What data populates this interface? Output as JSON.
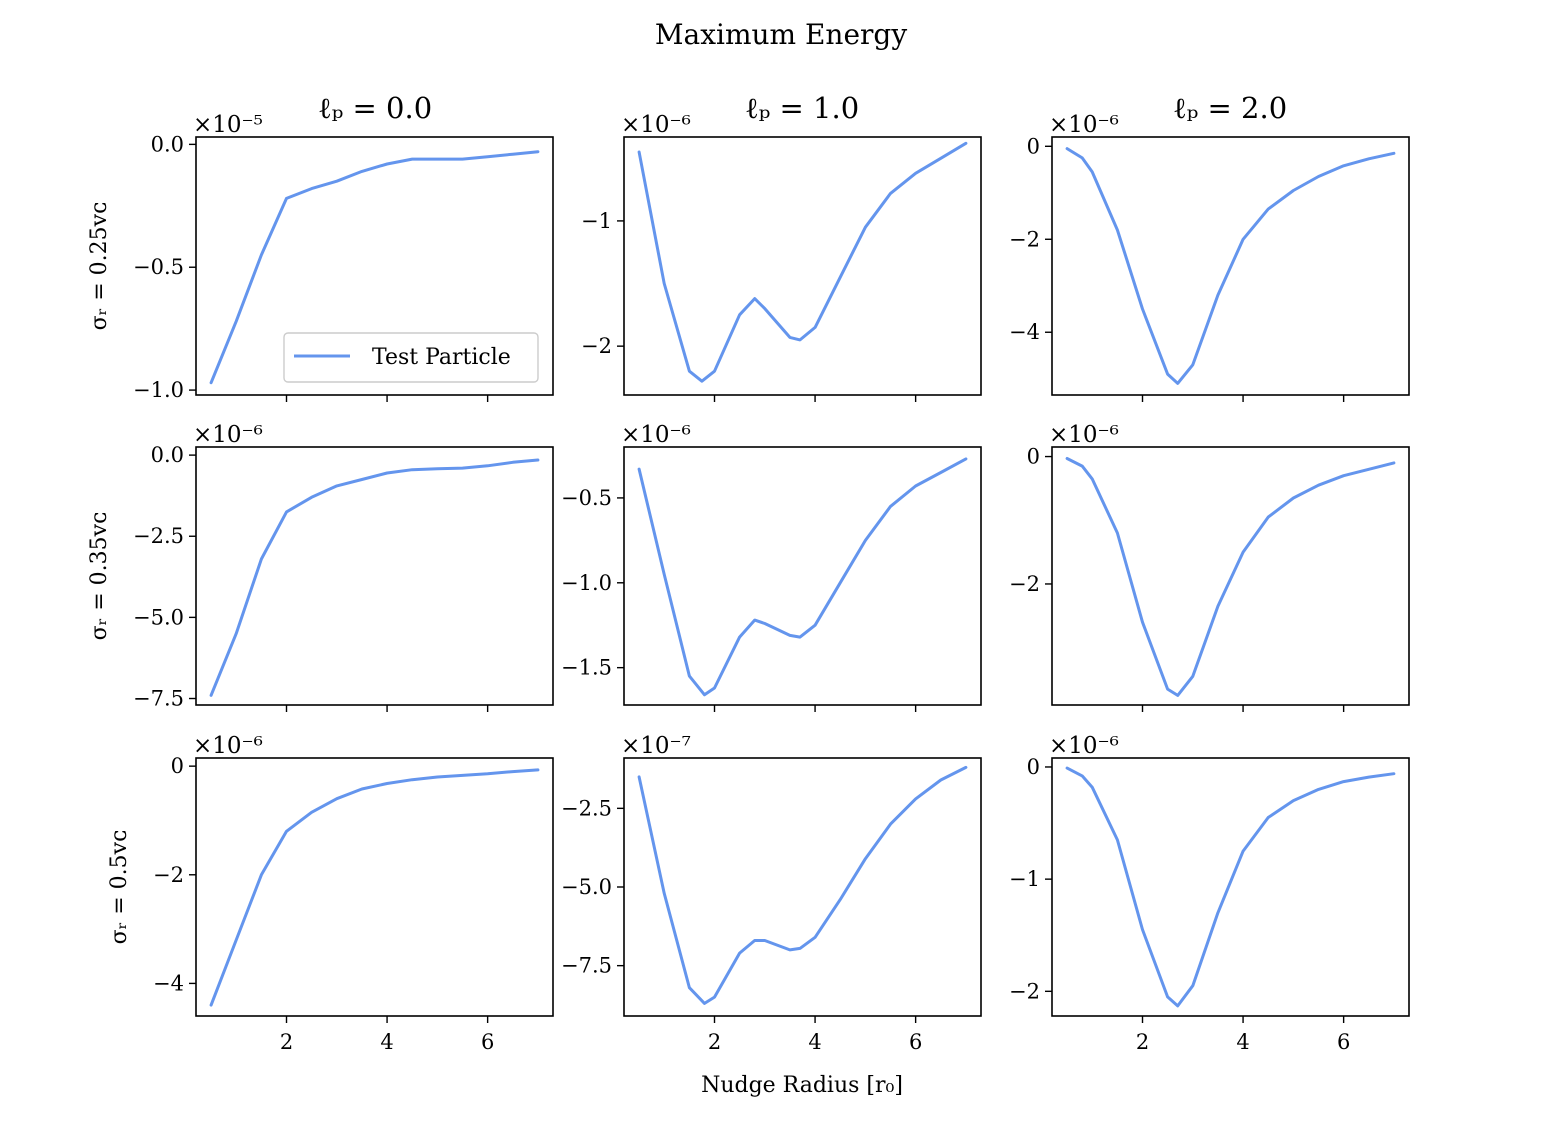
{
  "figure": {
    "title": "Maximum Energy",
    "xlabel": "Nudge Radius [r₀]",
    "column_titles": [
      "ℓₚ = 0.0",
      "ℓₚ = 1.0",
      "ℓₚ = 2.0"
    ],
    "row_labels": [
      "σᵣ = 0.25vᴄ",
      "σᵣ = 0.35vᴄ",
      "σᵣ = 0.5vᴄ"
    ],
    "legend": {
      "label": "Test Particle",
      "placement": "lower-right",
      "panel": 0
    }
  },
  "chart_data": [
    {
      "type": "line",
      "row": 0,
      "col": 0,
      "offset_text": "×10⁻⁵",
      "x": [
        0.5,
        1.0,
        1.5,
        2.0,
        2.5,
        3.0,
        3.5,
        4.0,
        4.5,
        5.0,
        5.5,
        6.0,
        6.5,
        7.0
      ],
      "series": [
        {
          "name": "Test Particle",
          "color": "#6495ed",
          "values": [
            -0.97,
            -0.72,
            -0.45,
            -0.22,
            -0.18,
            -0.15,
            -0.11,
            -0.08,
            -0.06,
            -0.06,
            -0.06,
            -0.05,
            -0.04,
            -0.03
          ]
        }
      ],
      "ylim": [
        -1.02,
        0.03
      ],
      "yticks": [
        0.0,
        -0.5,
        -1.0
      ],
      "ytick_labels": [
        "0.0",
        "−0.5",
        "−1.0"
      ],
      "xlim": [
        0.2,
        7.3
      ],
      "xticks": [
        2,
        4,
        6
      ],
      "xtick_labels": []
    },
    {
      "type": "line",
      "row": 0,
      "col": 1,
      "offset_text": "×10⁻⁶",
      "x": [
        0.5,
        1.0,
        1.5,
        1.75,
        2.0,
        2.5,
        2.8,
        3.0,
        3.5,
        3.7,
        4.0,
        4.5,
        5.0,
        5.5,
        6.0,
        6.5,
        7.0
      ],
      "series": [
        {
          "name": "Test Particle",
          "color": "#6495ed",
          "values": [
            -0.45,
            -1.5,
            -2.2,
            -2.28,
            -2.2,
            -1.75,
            -1.62,
            -1.7,
            -1.93,
            -1.95,
            -1.85,
            -1.45,
            -1.05,
            -0.78,
            -0.62,
            -0.5,
            -0.38
          ]
        }
      ],
      "ylim": [
        -2.39,
        -0.33
      ],
      "yticks": [
        -1,
        -2
      ],
      "ytick_labels": [
        "−1",
        "−2"
      ],
      "xlim": [
        0.2,
        7.3
      ],
      "xticks": [
        2,
        4,
        6
      ],
      "xtick_labels": []
    },
    {
      "type": "line",
      "row": 0,
      "col": 2,
      "offset_text": "×10⁻⁶",
      "x": [
        0.5,
        0.8,
        1.0,
        1.5,
        2.0,
        2.5,
        2.7,
        3.0,
        3.5,
        4.0,
        4.5,
        5.0,
        5.5,
        6.0,
        6.5,
        7.0
      ],
      "series": [
        {
          "name": "Test Particle",
          "color": "#6495ed",
          "values": [
            -0.05,
            -0.25,
            -0.55,
            -1.8,
            -3.5,
            -4.9,
            -5.1,
            -4.7,
            -3.2,
            -2.0,
            -1.35,
            -0.95,
            -0.65,
            -0.42,
            -0.27,
            -0.15
          ]
        }
      ],
      "ylim": [
        -5.35,
        0.2
      ],
      "yticks": [
        0,
        -2,
        -4
      ],
      "ytick_labels": [
        "0",
        "−2",
        "−4"
      ],
      "xlim": [
        0.2,
        7.3
      ],
      "xticks": [
        2,
        4,
        6
      ],
      "xtick_labels": []
    },
    {
      "type": "line",
      "row": 1,
      "col": 0,
      "offset_text": "×10⁻⁶",
      "x": [
        0.5,
        1.0,
        1.5,
        2.0,
        2.5,
        3.0,
        3.5,
        4.0,
        4.5,
        5.0,
        5.5,
        6.0,
        6.5,
        7.0
      ],
      "series": [
        {
          "name": "Test Particle",
          "color": "#6495ed",
          "values": [
            -7.4,
            -5.5,
            -3.2,
            -1.75,
            -1.3,
            -0.95,
            -0.75,
            -0.55,
            -0.45,
            -0.42,
            -0.4,
            -0.33,
            -0.22,
            -0.15
          ]
        }
      ],
      "ylim": [
        -7.7,
        0.25
      ],
      "yticks": [
        0.0,
        -2.5,
        -5.0,
        -7.5
      ],
      "ytick_labels": [
        "0.0",
        "−2.5",
        "−5.0",
        "−7.5"
      ],
      "xlim": [
        0.2,
        7.3
      ],
      "xticks": [
        2,
        4,
        6
      ],
      "xtick_labels": []
    },
    {
      "type": "line",
      "row": 1,
      "col": 1,
      "offset_text": "×10⁻⁶",
      "x": [
        0.5,
        1.0,
        1.5,
        1.8,
        2.0,
        2.5,
        2.8,
        3.0,
        3.5,
        3.7,
        4.0,
        4.5,
        5.0,
        5.5,
        6.0,
        6.5,
        7.0
      ],
      "series": [
        {
          "name": "Test Particle",
          "color": "#6495ed",
          "values": [
            -0.33,
            -0.95,
            -1.55,
            -1.66,
            -1.62,
            -1.32,
            -1.22,
            -1.24,
            -1.31,
            -1.32,
            -1.25,
            -1.0,
            -0.75,
            -0.55,
            -0.43,
            -0.35,
            -0.27
          ]
        }
      ],
      "ylim": [
        -1.72,
        -0.2
      ],
      "yticks": [
        -0.5,
        -1.0,
        -1.5
      ],
      "ytick_labels": [
        "−0.5",
        "−1.0",
        "−1.5"
      ],
      "xlim": [
        0.2,
        7.3
      ],
      "xticks": [
        2,
        4,
        6
      ],
      "xtick_labels": []
    },
    {
      "type": "line",
      "row": 1,
      "col": 2,
      "offset_text": "×10⁻⁶",
      "x": [
        0.5,
        0.8,
        1.0,
        1.5,
        2.0,
        2.5,
        2.7,
        3.0,
        3.5,
        4.0,
        4.5,
        5.0,
        5.5,
        6.0,
        6.5,
        7.0
      ],
      "series": [
        {
          "name": "Test Particle",
          "color": "#6495ed",
          "values": [
            -0.03,
            -0.15,
            -0.35,
            -1.2,
            -2.6,
            -3.65,
            -3.75,
            -3.45,
            -2.35,
            -1.5,
            -0.95,
            -0.65,
            -0.45,
            -0.3,
            -0.2,
            -0.1
          ]
        }
      ],
      "ylim": [
        -3.9,
        0.15
      ],
      "yticks": [
        0,
        -2
      ],
      "ytick_labels": [
        "0",
        "−2"
      ],
      "xlim": [
        0.2,
        7.3
      ],
      "xticks": [
        2,
        4,
        6
      ],
      "xtick_labels": []
    },
    {
      "type": "line",
      "row": 2,
      "col": 0,
      "offset_text": "×10⁻⁶",
      "x": [
        0.5,
        1.0,
        1.5,
        2.0,
        2.5,
        3.0,
        3.5,
        4.0,
        4.5,
        5.0,
        5.5,
        6.0,
        6.5,
        7.0
      ],
      "series": [
        {
          "name": "Test Particle",
          "color": "#6495ed",
          "values": [
            -4.4,
            -3.2,
            -2.0,
            -1.2,
            -0.85,
            -0.6,
            -0.42,
            -0.32,
            -0.25,
            -0.2,
            -0.17,
            -0.14,
            -0.1,
            -0.07
          ]
        }
      ],
      "ylim": [
        -4.6,
        0.15
      ],
      "yticks": [
        0,
        -2,
        -4
      ],
      "ytick_labels": [
        "0",
        "−2",
        "−4"
      ],
      "xlim": [
        0.2,
        7.3
      ],
      "xticks": [
        2,
        4,
        6
      ],
      "xtick_labels": [
        "2",
        "4",
        "6"
      ]
    },
    {
      "type": "line",
      "row": 2,
      "col": 1,
      "offset_text": "×10⁻⁷",
      "x": [
        0.5,
        1.0,
        1.5,
        1.8,
        2.0,
        2.5,
        2.8,
        3.0,
        3.5,
        3.7,
        4.0,
        4.5,
        5.0,
        5.5,
        6.0,
        6.5,
        7.0
      ],
      "series": [
        {
          "name": "Test Particle",
          "color": "#6495ed",
          "values": [
            -1.5,
            -5.2,
            -8.2,
            -8.7,
            -8.5,
            -7.1,
            -6.7,
            -6.7,
            -7.0,
            -6.95,
            -6.6,
            -5.4,
            -4.1,
            -3.0,
            -2.2,
            -1.6,
            -1.2
          ]
        }
      ],
      "ylim": [
        -9.1,
        -0.9
      ],
      "yticks": [
        -2.5,
        -5.0,
        -7.5
      ],
      "ytick_labels": [
        "−2.5",
        "−5.0",
        "−7.5"
      ],
      "xlim": [
        0.2,
        7.3
      ],
      "xticks": [
        2,
        4,
        6
      ],
      "xtick_labels": [
        "2",
        "4",
        "6"
      ]
    },
    {
      "type": "line",
      "row": 2,
      "col": 2,
      "offset_text": "×10⁻⁶",
      "x": [
        0.5,
        0.8,
        1.0,
        1.5,
        2.0,
        2.5,
        2.7,
        3.0,
        3.5,
        4.0,
        4.5,
        5.0,
        5.5,
        6.0,
        6.5,
        7.0
      ],
      "series": [
        {
          "name": "Test Particle",
          "color": "#6495ed",
          "values": [
            -0.01,
            -0.08,
            -0.18,
            -0.65,
            -1.45,
            -2.05,
            -2.13,
            -1.95,
            -1.3,
            -0.75,
            -0.45,
            -0.3,
            -0.2,
            -0.13,
            -0.09,
            -0.06
          ]
        }
      ],
      "ylim": [
        -2.22,
        0.08
      ],
      "yticks": [
        0,
        -1,
        -2
      ],
      "ytick_labels": [
        "0",
        "−1",
        "−2"
      ],
      "xlim": [
        0.2,
        7.3
      ],
      "xticks": [
        2,
        4,
        6
      ],
      "xtick_labels": [
        "2",
        "4",
        "6"
      ]
    }
  ]
}
